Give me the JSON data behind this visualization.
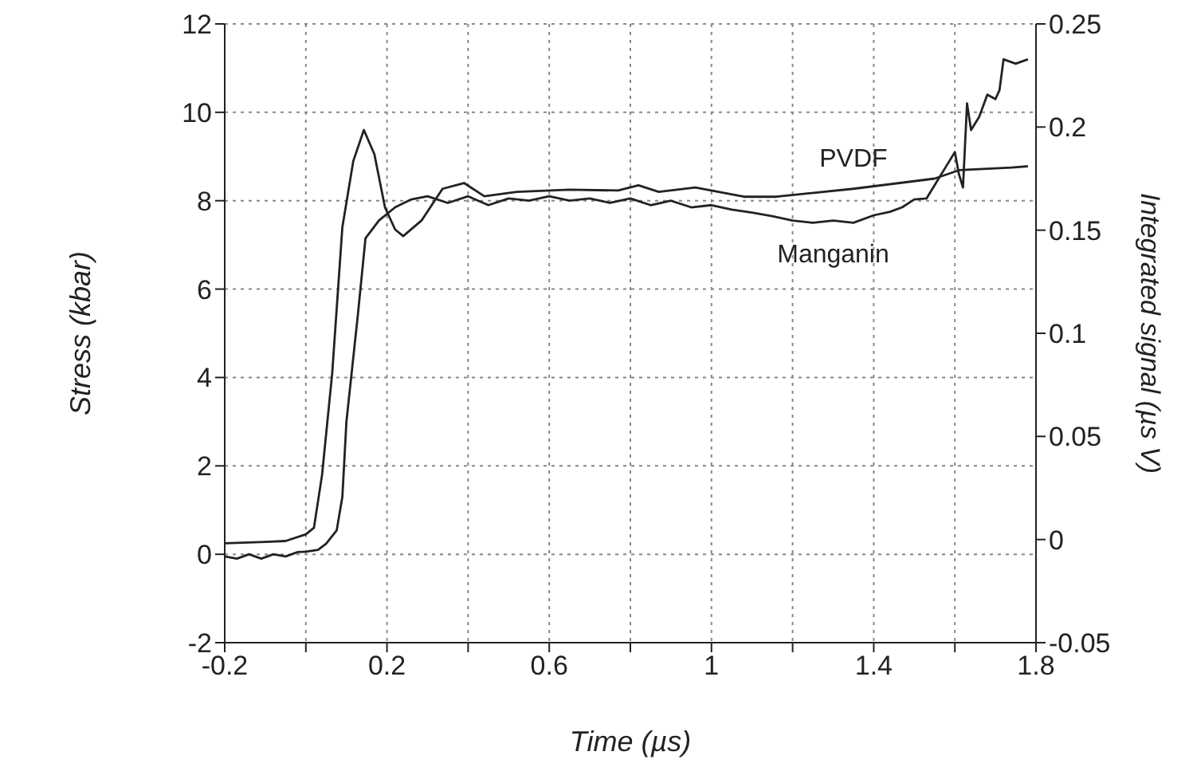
{
  "chart_data": {
    "type": "line",
    "xlabel": "Time (µs)",
    "ylabel": "Stress (kbar)",
    "y2label": "Integrated signal (µs V)",
    "xlim": [
      -0.2,
      1.8
    ],
    "xticks": [
      -0.2,
      {
        "value": 0,
        "label": null
      },
      0.2,
      {
        "value": 0.4,
        "label": null
      },
      0.6,
      {
        "value": 0.8,
        "label": null
      },
      1,
      {
        "value": 1.2,
        "label": null
      },
      1.4,
      {
        "value": 1.6,
        "label": null
      },
      1.8
    ],
    "ylim": [
      -2,
      12
    ],
    "yticks": [
      -2,
      0,
      2,
      4,
      6,
      8,
      10,
      12
    ],
    "y2lim": [
      -0.05,
      0.25
    ],
    "y2ticks": [
      -0.05,
      0,
      0.05,
      0.1,
      0.15,
      0.2,
      0.25
    ],
    "grid": true,
    "legend": false,
    "marker": "none",
    "line_style": "solid",
    "series": [
      {
        "name": "PVDF",
        "color": "#222222",
        "x": [
          -0.2,
          -0.1,
          -0.05,
          0,
          0.02,
          0.04,
          0.065,
          0.09,
          0.117,
          0.143,
          0.169,
          0.195,
          0.22,
          0.24,
          0.285,
          0.337,
          0.39,
          0.44,
          0.52,
          0.65,
          0.77,
          0.82,
          0.87,
          0.96,
          1.08,
          1.16,
          1.35,
          1.55,
          1.61,
          1.74,
          1.78
        ],
        "values": [
          0.25,
          0.28,
          0.3,
          0.45,
          0.6,
          1.8,
          4.1,
          7.4,
          8.9,
          9.6,
          9.05,
          7.85,
          7.35,
          7.2,
          7.55,
          8.27,
          8.4,
          8.1,
          8.2,
          8.25,
          8.23,
          8.35,
          8.2,
          8.3,
          8.09,
          8.09,
          8.27,
          8.5,
          8.69,
          8.75,
          8.78
        ]
      },
      {
        "name": "Manganin",
        "color": "#222222",
        "x": [
          -0.2,
          -0.17,
          -0.14,
          -0.11,
          -0.08,
          -0.05,
          -0.02,
          0,
          0.03,
          0.05,
          0.076,
          0.09,
          0.1,
          0.128,
          0.147,
          0.18,
          0.22,
          0.26,
          0.3,
          0.35,
          0.4,
          0.45,
          0.5,
          0.55,
          0.6,
          0.65,
          0.7,
          0.75,
          0.8,
          0.85,
          0.9,
          0.95,
          1.0,
          1.05,
          1.1,
          1.15,
          1.2,
          1.25,
          1.3,
          1.35,
          1.4,
          1.44,
          1.47,
          1.5,
          1.53,
          1.56,
          1.58,
          1.6,
          1.61,
          1.62,
          1.63,
          1.64,
          1.66,
          1.68,
          1.7,
          1.71,
          1.72,
          1.75,
          1.78
        ],
        "values": [
          -0.05,
          -0.1,
          0,
          -0.1,
          0,
          -0.05,
          0.05,
          0.06,
          0.1,
          0.24,
          0.54,
          1.3,
          3.0,
          5.4,
          7.15,
          7.55,
          7.85,
          8.03,
          8.1,
          7.95,
          8.1,
          7.9,
          8.05,
          8.0,
          8.1,
          8.0,
          8.05,
          7.95,
          8.05,
          7.9,
          8.0,
          7.85,
          7.9,
          7.8,
          7.73,
          7.65,
          7.55,
          7.5,
          7.55,
          7.5,
          7.67,
          7.75,
          7.85,
          8.03,
          8.05,
          8.5,
          8.8,
          9.1,
          8.6,
          8.3,
          10.2,
          9.6,
          9.9,
          10.4,
          10.3,
          10.5,
          11.2,
          11.1,
          11.2
        ]
      }
    ]
  }
}
